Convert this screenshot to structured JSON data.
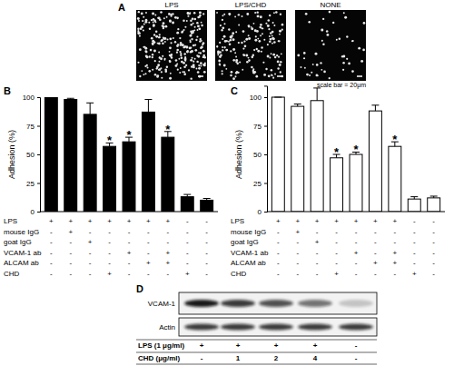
{
  "chart_data": [
    {
      "type": "bar",
      "title": "B",
      "y_label": "Adhesion (%)",
      "color": "#000000",
      "categories": [
        null,
        null,
        null,
        null,
        null,
        null,
        null,
        null,
        null
      ],
      "values": [
        100,
        98,
        85,
        57,
        61,
        87,
        65,
        13,
        10
      ],
      "errors": [
        0,
        1,
        10,
        3,
        4,
        11,
        5,
        2,
        1.5
      ],
      "ylim": [
        0,
        100
      ],
      "yticks": [
        0,
        25,
        50,
        75,
        100
      ],
      "grid": false,
      "annotations": [
        {
          "index": 3,
          "text": "*"
        },
        {
          "index": 4,
          "text": "*"
        },
        {
          "index": 6,
          "text": "*"
        }
      ],
      "conditions": [
        {
          "label": "LPS",
          "marks": [
            "+",
            "+",
            "+",
            "+",
            "+",
            "+",
            "+",
            "-",
            "-"
          ]
        },
        {
          "label": "mouse IgG",
          "marks": [
            "-",
            "+",
            "-",
            "-",
            "-",
            "-",
            "-",
            "-",
            "-"
          ]
        },
        {
          "label": "goat IgG",
          "marks": [
            "-",
            "-",
            "+",
            "-",
            "-",
            "-",
            "-",
            "-",
            "-"
          ]
        },
        {
          "label": "VCAM-1 ab",
          "marks": [
            "-",
            "-",
            "-",
            "-",
            "+",
            "-",
            "+",
            "-",
            "-"
          ]
        },
        {
          "label": "ALCAM ab",
          "marks": [
            "-",
            "-",
            "-",
            "-",
            "-",
            "+",
            "+",
            "-",
            "-"
          ]
        },
        {
          "label": "CHD",
          "marks": [
            "-",
            "-",
            "-",
            "+",
            "-",
            "-",
            "-",
            "+",
            "-"
          ]
        }
      ]
    },
    {
      "type": "bar",
      "title": "C",
      "y_label": "Adhesion (%)",
      "color": "#ffffff",
      "categories": [
        null,
        null,
        null,
        null,
        null,
        null,
        null,
        null,
        null
      ],
      "values": [
        100,
        92,
        97,
        47,
        50,
        88,
        57,
        11,
        12
      ],
      "errors": [
        0,
        2,
        11,
        3,
        2,
        5,
        4,
        2,
        1.5
      ],
      "ylim": [
        0,
        110
      ],
      "yticks": [
        0,
        25,
        50,
        75,
        100
      ],
      "grid": false,
      "annotations": [
        {
          "index": 3,
          "text": "*"
        },
        {
          "index": 4,
          "text": "*"
        },
        {
          "index": 6,
          "text": "*"
        }
      ],
      "conditions": [
        {
          "label": "LPS",
          "marks": [
            "+",
            "+",
            "+",
            "+",
            "+",
            "+",
            "+",
            "-",
            "-"
          ]
        },
        {
          "label": "mouse IgG",
          "marks": [
            "-",
            "+",
            "-",
            "-",
            "-",
            "-",
            "-",
            "-",
            "-"
          ]
        },
        {
          "label": "goat IgG",
          "marks": [
            "-",
            "-",
            "+",
            "-",
            "-",
            "-",
            "-",
            "-",
            "-"
          ]
        },
        {
          "label": "VCAM-1 ab",
          "marks": [
            "-",
            "-",
            "-",
            "-",
            "+",
            "-",
            "+",
            "-",
            "-"
          ]
        },
        {
          "label": "ALCAM ab",
          "marks": [
            "-",
            "-",
            "-",
            "-",
            "-",
            "+",
            "+",
            "-",
            "-"
          ]
        },
        {
          "label": "CHD",
          "marks": [
            "-",
            "-",
            "-",
            "+",
            "-",
            "-",
            "-",
            "+",
            "-"
          ]
        }
      ]
    }
  ],
  "panel_a": {
    "label": "A",
    "images": [
      "LPS",
      "LPS/CHD",
      "NONE"
    ],
    "scale_bar": "scale bar = 20μm"
  },
  "panel_d": {
    "label": "D",
    "bands": [
      "VCAM-1",
      "Actin"
    ],
    "rows": [
      {
        "label": "LPS (1 μg/ml)",
        "marks": [
          "+",
          "+",
          "+",
          "+",
          "-"
        ]
      },
      {
        "label": "CHD (μg/ml)",
        "marks": [
          "-",
          "1",
          "2",
          "4",
          "-"
        ]
      }
    ]
  }
}
